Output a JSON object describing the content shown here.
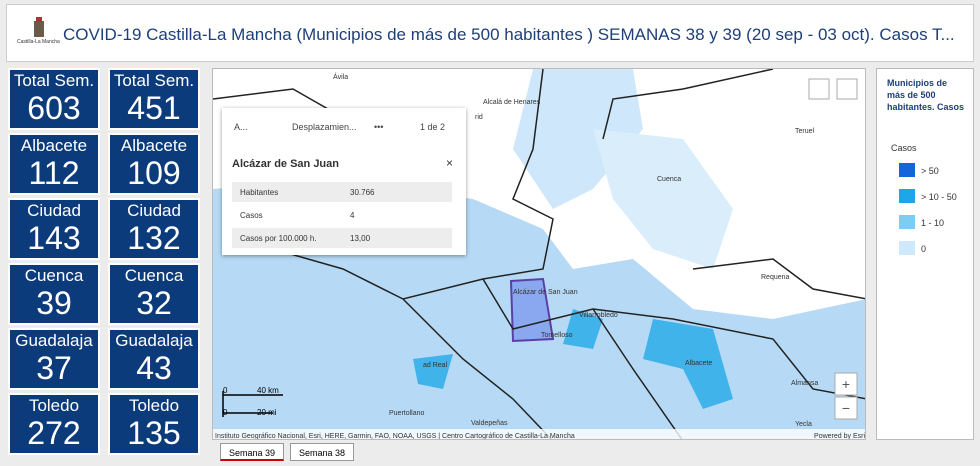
{
  "header": {
    "logo_text": "Castilla-La Mancha",
    "title": "COVID-19 Castilla-La Mancha (Municipios de más de 500 habitantes ) SEMANAS 38 y 39 (20 sep - 03 oct). Casos T..."
  },
  "tiles": [
    {
      "label": "Total Sem.",
      "value": "603"
    },
    {
      "label": "Total Sem.",
      "value": "451"
    },
    {
      "label": "Albacete",
      "value": "112"
    },
    {
      "label": "Albacete",
      "value": "109"
    },
    {
      "label": "Ciudad",
      "value": "143"
    },
    {
      "label": "Ciudad",
      "value": "132"
    },
    {
      "label": "Cuenca",
      "value": "39"
    },
    {
      "label": "Cuenca",
      "value": "32"
    },
    {
      "label": "Guadalaja",
      "value": "37"
    },
    {
      "label": "Guadalaja",
      "value": "43"
    },
    {
      "label": "Toledo",
      "value": "272"
    },
    {
      "label": "Toledo",
      "value": "135"
    }
  ],
  "popup": {
    "toolbar": [
      "A...",
      "Desplazamien...",
      "•••",
      "1 de 2"
    ],
    "title": "Alcázar de San Juan",
    "rows": [
      [
        "Habitantes",
        "30.766"
      ],
      [
        "Casos",
        "4"
      ],
      [
        "Casos por 100.000 h.",
        "13,00"
      ]
    ]
  },
  "map": {
    "places": [
      "Ávila",
      "Alcalá de Henares",
      "rid",
      "Teruel",
      "Cuenca",
      "Requena",
      "Alcázar de San Juan",
      "Tomelloso",
      "Villarrobledo",
      "Albacete",
      "Almansa",
      "ad Real",
      "Valdepeñas",
      "Puertollano",
      "Yecla"
    ],
    "scale": [
      "0",
      "40 km",
      "0",
      "20 mi"
    ],
    "attribution": "Instituto Geográfico Nacional, Esri, HERE, Garmin, FAO, NOAA, USGS | Centro Cartográfico de Castilla-La Mancha",
    "powered": "Powered by Esri",
    "zoom": [
      "+",
      "−"
    ]
  },
  "legend": {
    "title": "Municipios de más de 500 habitantes. Casos",
    "subtitle": "Casos",
    "items": [
      "> 50",
      "> 10 - 50",
      "1 - 10",
      "0"
    ]
  },
  "tabs": [
    "Semana 39",
    "Semana 38"
  ]
}
